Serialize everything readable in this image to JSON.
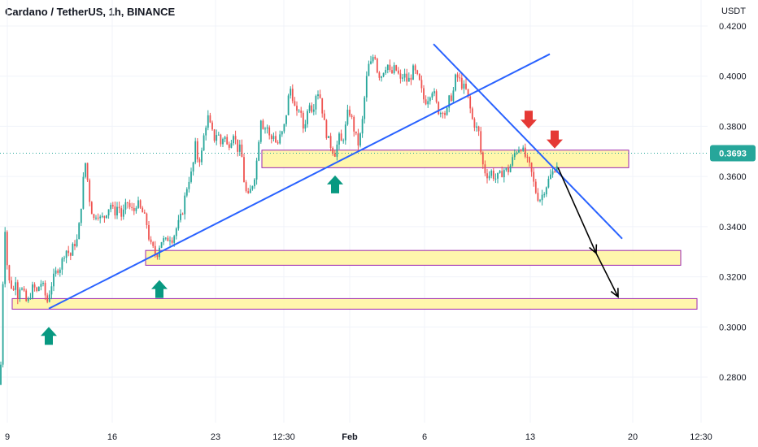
{
  "title": "Cardano / TetherUS, 1h, BINANCE",
  "colors": {
    "candle_up": "#26a69a",
    "candle_down": "#ef5350",
    "trendline": "#2962ff",
    "zone_fill": "#fff59d",
    "zone_border": "#9c27b0",
    "arrow_up": "#089981",
    "arrow_down": "#e53935",
    "price_line": "#26a69a",
    "projection": "#000000"
  },
  "chart_data": {
    "type": "candlestick",
    "title": "Cardano / TetherUS, 1h, BINANCE",
    "y_unit": "USDT",
    "ylim": [
      0.274,
      0.4222
    ],
    "y_ticks": [
      "0.4200",
      "0.4000",
      "0.3800",
      "0.3600",
      "0.3400",
      "0.3200",
      "0.3000",
      "0.2800"
    ],
    "x_ticks": [
      "9",
      "16",
      "23",
      "12:30",
      "Feb",
      "6",
      "13",
      "20",
      "12:30"
    ],
    "last_price": "0.3693",
    "price_path": [
      [
        0,
        0.277
      ],
      [
        1,
        0.281
      ],
      [
        3,
        0.286
      ],
      [
        4,
        0.3
      ],
      [
        5,
        0.315
      ],
      [
        6,
        0.33
      ],
      [
        7,
        0.341
      ],
      [
        8,
        0.339
      ],
      [
        10,
        0.326
      ],
      [
        13,
        0.318
      ],
      [
        16,
        0.316
      ],
      [
        19,
        0.314
      ],
      [
        21,
        0.32
      ],
      [
        23,
        0.312
      ],
      [
        26,
        0.316
      ],
      [
        30,
        0.314
      ],
      [
        35,
        0.309
      ],
      [
        38,
        0.312
      ],
      [
        43,
        0.317
      ],
      [
        46,
        0.313
      ],
      [
        49,
        0.316
      ],
      [
        53,
        0.318
      ],
      [
        57,
        0.313
      ],
      [
        59,
        0.309
      ],
      [
        61,
        0.312
      ],
      [
        64,
        0.316
      ],
      [
        68,
        0.32
      ],
      [
        72,
        0.323
      ],
      [
        76,
        0.324
      ],
      [
        80,
        0.329
      ],
      [
        84,
        0.331
      ],
      [
        88,
        0.328
      ],
      [
        92,
        0.333
      ],
      [
        96,
        0.334
      ],
      [
        100,
        0.343
      ],
      [
        103,
        0.355
      ],
      [
        106,
        0.366
      ],
      [
        108,
        0.364
      ],
      [
        110,
        0.355
      ],
      [
        113,
        0.348
      ],
      [
        117,
        0.343
      ],
      [
        121,
        0.346
      ],
      [
        125,
        0.343
      ],
      [
        130,
        0.344
      ],
      [
        134,
        0.347
      ],
      [
        138,
        0.349
      ],
      [
        142,
        0.345
      ],
      [
        147,
        0.349
      ],
      [
        151,
        0.344
      ],
      [
        155,
        0.347
      ],
      [
        158,
        0.35
      ],
      [
        162,
        0.347
      ],
      [
        166,
        0.346
      ],
      [
        170,
        0.35
      ],
      [
        174,
        0.347
      ],
      [
        178,
        0.345
      ],
      [
        182,
        0.341
      ],
      [
        186,
        0.333
      ],
      [
        190,
        0.331
      ],
      [
        194,
        0.328
      ],
      [
        197,
        0.332
      ],
      [
        201,
        0.335
      ],
      [
        205,
        0.334
      ],
      [
        210,
        0.336
      ],
      [
        214,
        0.335
      ],
      [
        218,
        0.339
      ],
      [
        222,
        0.342
      ],
      [
        226,
        0.346
      ],
      [
        230,
        0.354
      ],
      [
        234,
        0.359
      ],
      [
        238,
        0.362
      ],
      [
        242,
        0.373
      ],
      [
        245,
        0.366
      ],
      [
        249,
        0.368
      ],
      [
        253,
        0.378
      ],
      [
        257,
        0.384
      ],
      [
        261,
        0.379
      ],
      [
        265,
        0.375
      ],
      [
        269,
        0.378
      ],
      [
        273,
        0.373
      ],
      [
        277,
        0.377
      ],
      [
        281,
        0.372
      ],
      [
        285,
        0.374
      ],
      [
        289,
        0.378
      ],
      [
        293,
        0.371
      ],
      [
        298,
        0.371
      ],
      [
        302,
        0.357
      ],
      [
        306,
        0.351
      ],
      [
        310,
        0.355
      ],
      [
        314,
        0.359
      ],
      [
        318,
        0.368
      ],
      [
        322,
        0.384
      ],
      [
        326,
        0.379
      ],
      [
        330,
        0.38
      ],
      [
        334,
        0.374
      ],
      [
        338,
        0.377
      ],
      [
        342,
        0.372
      ],
      [
        346,
        0.376
      ],
      [
        350,
        0.378
      ],
      [
        354,
        0.386
      ],
      [
        358,
        0.396
      ],
      [
        362,
        0.391
      ],
      [
        366,
        0.384
      ],
      [
        370,
        0.388
      ],
      [
        374,
        0.379
      ],
      [
        378,
        0.383
      ],
      [
        382,
        0.39
      ],
      [
        386,
        0.386
      ],
      [
        390,
        0.393
      ],
      [
        394,
        0.394
      ],
      [
        398,
        0.386
      ],
      [
        402,
        0.378
      ],
      [
        406,
        0.374
      ],
      [
        410,
        0.371
      ],
      [
        414,
        0.369
      ],
      [
        418,
        0.376
      ],
      [
        422,
        0.373
      ],
      [
        426,
        0.379
      ],
      [
        430,
        0.387
      ],
      [
        434,
        0.383
      ],
      [
        438,
        0.377
      ],
      [
        442,
        0.373
      ],
      [
        446,
        0.378
      ],
      [
        450,
        0.392
      ],
      [
        454,
        0.404
      ],
      [
        458,
        0.405
      ],
      [
        462,
        0.41
      ],
      [
        466,
        0.401
      ],
      [
        470,
        0.4
      ],
      [
        474,
        0.403
      ],
      [
        478,
        0.405
      ],
      [
        482,
        0.4
      ],
      [
        486,
        0.403
      ],
      [
        490,
        0.402
      ],
      [
        494,
        0.398
      ],
      [
        498,
        0.401
      ],
      [
        502,
        0.398
      ],
      [
        506,
        0.399
      ],
      [
        510,
        0.403
      ],
      [
        514,
        0.4
      ],
      [
        518,
        0.397
      ],
      [
        522,
        0.391
      ],
      [
        526,
        0.39
      ],
      [
        530,
        0.393
      ],
      [
        534,
        0.395
      ],
      [
        538,
        0.389
      ],
      [
        542,
        0.385
      ],
      [
        546,
        0.387
      ],
      [
        550,
        0.384
      ],
      [
        554,
        0.391
      ],
      [
        558,
        0.392
      ],
      [
        562,
        0.4
      ],
      [
        566,
        0.399
      ],
      [
        570,
        0.396
      ],
      [
        574,
        0.395
      ],
      [
        578,
        0.39
      ],
      [
        582,
        0.383
      ],
      [
        586,
        0.38
      ],
      [
        590,
        0.378
      ],
      [
        594,
        0.366
      ],
      [
        598,
        0.362
      ],
      [
        602,
        0.36
      ],
      [
        606,
        0.362
      ],
      [
        610,
        0.359
      ],
      [
        614,
        0.36
      ],
      [
        618,
        0.361
      ],
      [
        622,
        0.363
      ],
      [
        626,
        0.362
      ],
      [
        630,
        0.365
      ],
      [
        634,
        0.369
      ],
      [
        638,
        0.371
      ],
      [
        642,
        0.372
      ],
      [
        646,
        0.369
      ],
      [
        650,
        0.366
      ],
      [
        654,
        0.363
      ],
      [
        658,
        0.357
      ],
      [
        662,
        0.352
      ],
      [
        666,
        0.351
      ],
      [
        670,
        0.354
      ],
      [
        674,
        0.357
      ],
      [
        678,
        0.36
      ],
      [
        682,
        0.362
      ],
      [
        686,
        0.365
      ]
    ],
    "trendlines": [
      {
        "name": "rising-support",
        "from": [
          60,
          0.3073
        ],
        "to": [
          676,
          0.4088
        ]
      },
      {
        "name": "falling-resistance",
        "from": [
          533,
          0.4128
        ],
        "to": [
          765,
          0.3352
        ]
      }
    ],
    "zones": [
      {
        "name": "resistance-zone",
        "x": [
          322,
          773
        ],
        "price": [
          0.3635,
          0.3705
        ]
      },
      {
        "name": "support-zone-1",
        "x": [
          179,
          837
        ],
        "price": [
          0.3246,
          0.3305
        ]
      },
      {
        "name": "support-zone-2",
        "x": [
          15,
          857
        ],
        "price": [
          0.3071,
          0.3113
        ]
      }
    ],
    "markers": [
      {
        "name": "up-arrow",
        "x": 60,
        "price": 0.3,
        "dir": "up"
      },
      {
        "name": "up-arrow",
        "x": 196,
        "price": 0.3187,
        "dir": "up"
      },
      {
        "name": "up-arrow",
        "x": 412,
        "price": 0.3604,
        "dir": "up"
      },
      {
        "name": "down-arrow",
        "x": 650,
        "price": 0.3791,
        "dir": "down"
      },
      {
        "name": "down-arrow",
        "x": 682,
        "price": 0.3712,
        "dir": "down"
      }
    ],
    "projection": [
      [
        686,
        0.3636
      ],
      [
        733,
        0.3294
      ],
      [
        760,
        0.312
      ]
    ]
  }
}
